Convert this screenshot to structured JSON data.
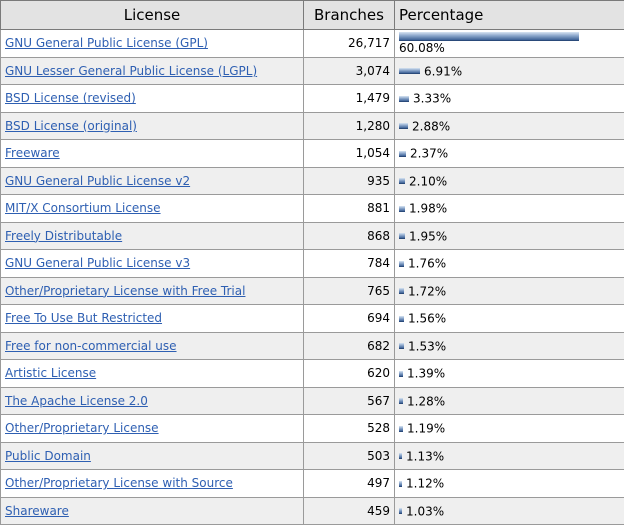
{
  "columns": {
    "license": "License",
    "branches": "Branches",
    "percentage": "Percentage"
  },
  "rows": [
    {
      "name": "GNU General Public License (GPL)",
      "branches": "26,717",
      "percent": "60.08%",
      "fraction": 0.6008
    },
    {
      "name": "GNU Lesser General Public License (LGPL)",
      "branches": "3,074",
      "percent": "6.91%",
      "fraction": 0.0691
    },
    {
      "name": "BSD License (revised)",
      "branches": "1,479",
      "percent": "3.33%",
      "fraction": 0.0333
    },
    {
      "name": "BSD License (original)",
      "branches": "1,280",
      "percent": "2.88%",
      "fraction": 0.0288
    },
    {
      "name": "Freeware",
      "branches": "1,054",
      "percent": "2.37%",
      "fraction": 0.0237
    },
    {
      "name": "GNU General Public License v2",
      "branches": "935",
      "percent": "2.10%",
      "fraction": 0.021
    },
    {
      "name": "MIT/X Consortium License",
      "branches": "881",
      "percent": "1.98%",
      "fraction": 0.0198
    },
    {
      "name": "Freely Distributable",
      "branches": "868",
      "percent": "1.95%",
      "fraction": 0.0195
    },
    {
      "name": "GNU General Public License v3",
      "branches": "784",
      "percent": "1.76%",
      "fraction": 0.0176
    },
    {
      "name": "Other/Proprietary License with Free Trial",
      "branches": "765",
      "percent": "1.72%",
      "fraction": 0.0172
    },
    {
      "name": "Free To Use But Restricted",
      "branches": "694",
      "percent": "1.56%",
      "fraction": 0.0156
    },
    {
      "name": "Free for non-commercial use",
      "branches": "682",
      "percent": "1.53%",
      "fraction": 0.0153
    },
    {
      "name": "Artistic License",
      "branches": "620",
      "percent": "1.39%",
      "fraction": 0.0139
    },
    {
      "name": "The Apache License 2.0",
      "branches": "567",
      "percent": "1.28%",
      "fraction": 0.0128
    },
    {
      "name": "Other/Proprietary License",
      "branches": "528",
      "percent": "1.19%",
      "fraction": 0.0119
    },
    {
      "name": "Public Domain",
      "branches": "503",
      "percent": "1.13%",
      "fraction": 0.0113
    },
    {
      "name": "Other/Proprietary License with Source",
      "branches": "497",
      "percent": "1.12%",
      "fraction": 0.0112
    },
    {
      "name": "Shareware",
      "branches": "459",
      "percent": "1.03%",
      "fraction": 0.0103
    }
  ]
}
